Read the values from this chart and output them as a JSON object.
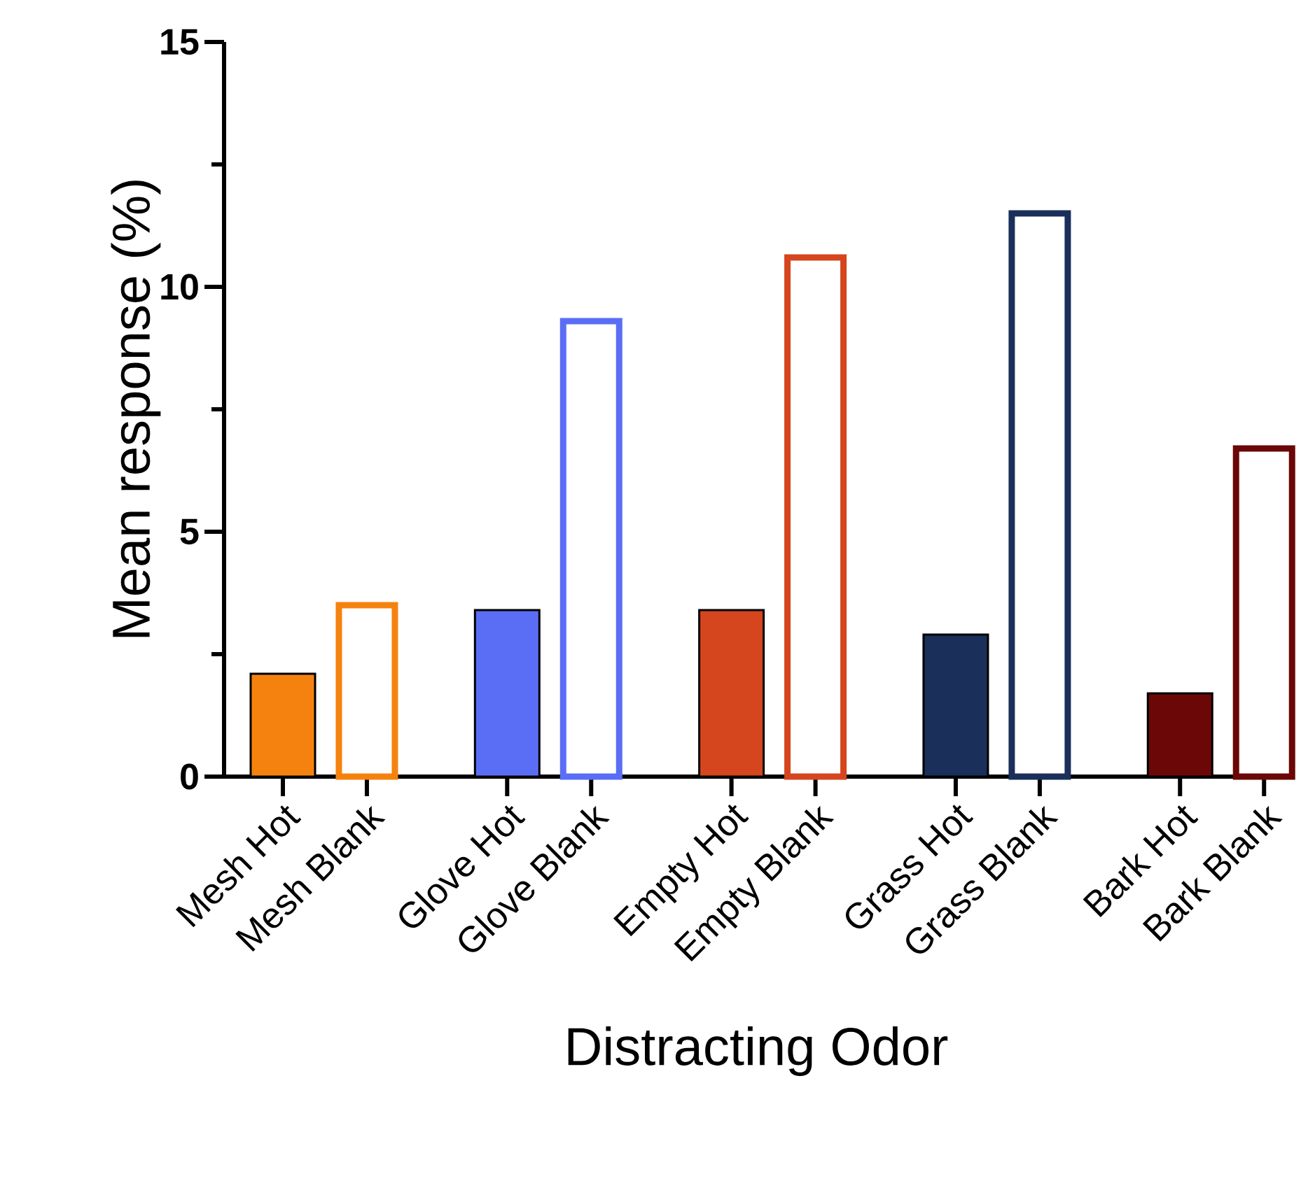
{
  "chart_data": {
    "type": "bar",
    "xlabel": "Distracting Odor",
    "ylabel": "Mean response (%)",
    "categories": [
      "Mesh Hot",
      "Mesh Blank",
      "Glove Hot",
      "Glove Blank",
      "Empty Hot",
      "Empty Blank",
      "Grass Hot",
      "Grass Blank",
      "Bark Hot",
      "Bark Blank"
    ],
    "values": [
      2.1,
      3.5,
      3.4,
      9.3,
      3.4,
      10.6,
      2.9,
      11.5,
      1.7,
      6.7
    ],
    "colors": [
      "#f5820f",
      "#f5820f",
      "#5a6ef5",
      "#5a6ef5",
      "#d5451e",
      "#d5451e",
      "#1a2f5a",
      "#1a2f5a",
      "#6b0707",
      "#6b0707"
    ],
    "ylim": [
      0,
      15
    ],
    "yticks": [
      0,
      5,
      10,
      15
    ]
  }
}
